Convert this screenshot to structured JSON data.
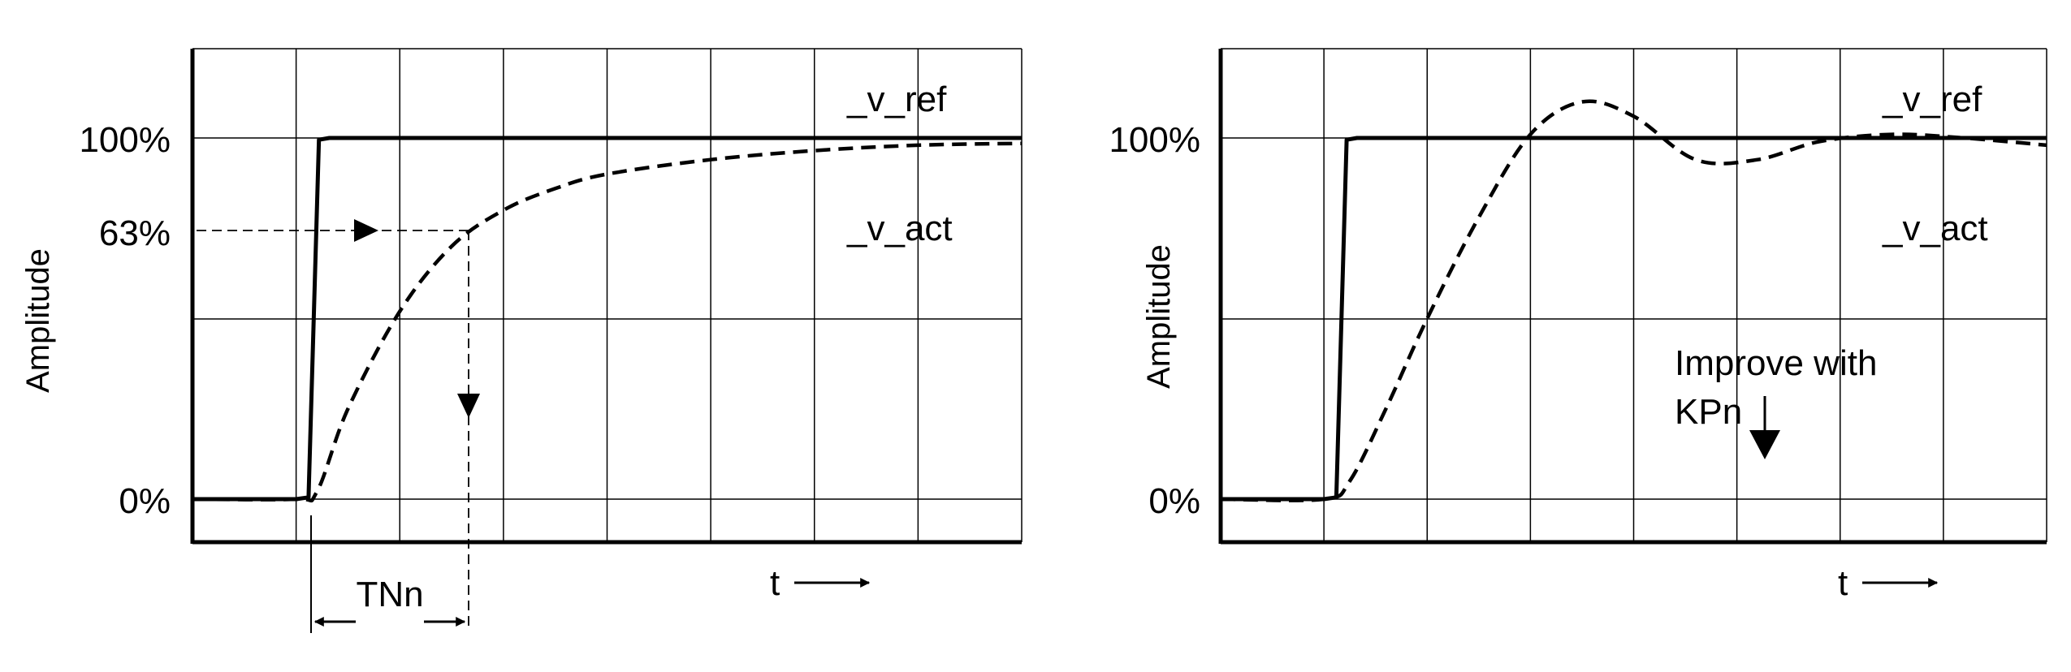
{
  "chart_data": [
    {
      "type": "line",
      "ylabel": "Amplitude",
      "xlabel": "t",
      "yticks": [
        "100%",
        "63%",
        "0%"
      ],
      "ylim": [
        0,
        100
      ],
      "grid": true,
      "series": [
        {
          "name": "_v_ref",
          "style": "solid",
          "x": [
            0,
            1.0,
            1.12,
            1.22,
            1.32,
            8.0
          ],
          "y": [
            0,
            0,
            0.5,
            99.5,
            100,
            100
          ]
        },
        {
          "name": "_v_act",
          "style": "dashed",
          "x": [
            0,
            1.0,
            1.2,
            1.5,
            2.0,
            2.5,
            3.0,
            3.5,
            4.0,
            5.0,
            6.0,
            7.0,
            8.0
          ],
          "y": [
            0,
            0,
            2,
            25,
            52,
            70,
            80,
            86,
            90,
            94,
            96.5,
            98,
            98.5
          ]
        }
      ],
      "annotations": [
        {
          "text": "TNn"
        },
        {
          "text": "63%"
        }
      ]
    },
    {
      "type": "line",
      "ylabel": "Amplitude",
      "xlabel": "t",
      "yticks": [
        "100%",
        "0%"
      ],
      "ylim": [
        0,
        100
      ],
      "grid": true,
      "series": [
        {
          "name": "_v_ref",
          "style": "solid",
          "x": [
            0,
            1.0,
            1.12,
            1.22,
            1.32,
            8.0
          ],
          "y": [
            0,
            0,
            0.5,
            99.5,
            100,
            100
          ]
        },
        {
          "name": "_v_act",
          "style": "dashed",
          "x": [
            0,
            1.0,
            1.25,
            1.6,
            2.0,
            2.5,
            3.0,
            3.5,
            4.0,
            4.6,
            5.2,
            5.8,
            6.5,
            7.2,
            8.0
          ],
          "y": [
            0,
            0,
            5,
            25,
            50,
            78,
            101,
            110,
            106,
            94,
            94,
            99,
            101,
            100,
            98
          ]
        }
      ],
      "annotations": [
        {
          "text_line1": "Improve with",
          "text_line2": "KPn"
        }
      ]
    }
  ]
}
